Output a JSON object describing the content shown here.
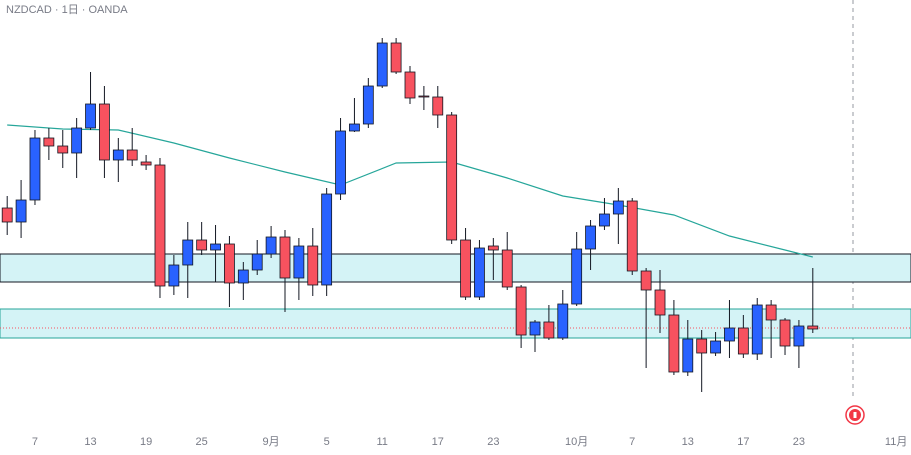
{
  "chart_data": {
    "type": "candlestick",
    "title": "NZDCAD · 1日 · OANDA",
    "up_color": "#2962ff",
    "down_color": "#f7525f",
    "ma_color": "#26a69a",
    "zone_color": "#d4f3f6",
    "price_line_color": "#f7525f",
    "xlim": [
      -0.518,
      65.07
    ],
    "ylim": [
      0.8045,
      0.85
    ],
    "xticks": [
      {
        "value": 2,
        "label": "7"
      },
      {
        "value": 6,
        "label": "13"
      },
      {
        "value": 10,
        "label": "19"
      },
      {
        "value": 14,
        "label": "25"
      },
      {
        "value": 19,
        "label": "9月"
      },
      {
        "value": 23,
        "label": "5"
      },
      {
        "value": 27,
        "label": "11"
      },
      {
        "value": 31,
        "label": "17"
      },
      {
        "value": 35,
        "label": "23"
      },
      {
        "value": 41,
        "label": "10月"
      },
      {
        "value": 45,
        "label": "7"
      },
      {
        "value": 49,
        "label": "13"
      },
      {
        "value": 53,
        "label": "17"
      },
      {
        "value": 57,
        "label": "23"
      },
      {
        "value": 64,
        "label": "11月"
      }
    ],
    "open": [
      0.8292,
      0.8278,
      0.83,
      0.8362,
      0.8354,
      0.8347,
      0.8372,
      0.8396,
      0.834,
      0.835,
      0.8338,
      0.8335,
      0.8214,
      0.8235,
      0.826,
      0.825,
      0.8256,
      0.8217,
      0.823,
      0.8246,
      0.8263,
      0.8222,
      0.8254,
      0.8215,
      0.8306,
      0.8369,
      0.8376,
      0.8414,
      0.8457,
      0.8428,
      0.8404,
      0.8403,
      0.8385,
      0.826,
      0.8203,
      0.8254,
      0.825,
      0.8213,
      0.8165,
      0.8178,
      0.8162,
      0.8196,
      0.8251,
      0.8274,
      0.8286,
      0.8299,
      0.8229,
      0.821,
      0.8185,
      0.8128,
      0.8161,
      0.8147,
      0.8159,
      0.8172,
      0.8146,
      0.8195,
      0.818,
      0.8154,
      0.8174
    ],
    "high": [
      0.8304,
      0.832,
      0.837,
      0.8372,
      0.837,
      0.8382,
      0.8428,
      0.8414,
      0.8362,
      0.8372,
      0.8345,
      0.8342,
      0.8245,
      0.8278,
      0.8278,
      0.8275,
      0.8264,
      0.8238,
      0.826,
      0.8274,
      0.827,
      0.8262,
      0.8272,
      0.8312,
      0.8382,
      0.8402,
      0.8422,
      0.8462,
      0.8462,
      0.8434,
      0.8414,
      0.8414,
      0.8388,
      0.8272,
      0.826,
      0.8262,
      0.8268,
      0.8215,
      0.818,
      0.8195,
      0.821,
      0.8268,
      0.828,
      0.8302,
      0.8312,
      0.8302,
      0.8232,
      0.823,
      0.82,
      0.818,
      0.817,
      0.8168,
      0.82,
      0.8185,
      0.8202,
      0.82,
      0.8182,
      0.818,
      0.8232
    ],
    "low": [
      0.8265,
      0.8262,
      0.8295,
      0.834,
      0.8332,
      0.8322,
      0.837,
      0.8322,
      0.8318,
      0.8334,
      0.833,
      0.8202,
      0.8205,
      0.8202,
      0.8245,
      0.8218,
      0.8193,
      0.82,
      0.8225,
      0.8242,
      0.8188,
      0.82,
      0.8204,
      0.8204,
      0.83,
      0.8368,
      0.8372,
      0.8412,
      0.8426,
      0.8396,
      0.839,
      0.8372,
      0.8256,
      0.82,
      0.82,
      0.822,
      0.821,
      0.8152,
      0.8148,
      0.816,
      0.816,
      0.8194,
      0.823,
      0.827,
      0.8256,
      0.8225,
      0.8132,
      0.8167,
      0.8125,
      0.8124,
      0.8108,
      0.8144,
      0.8142,
      0.8142,
      0.814,
      0.8142,
      0.8145,
      0.8132,
      0.8167
    ],
    "close": [
      0.8278,
      0.83,
      0.8362,
      0.8354,
      0.8347,
      0.8372,
      0.8396,
      0.834,
      0.835,
      0.834,
      0.8335,
      0.8214,
      0.8235,
      0.826,
      0.825,
      0.8256,
      0.8217,
      0.823,
      0.8246,
      0.8263,
      0.8222,
      0.8254,
      0.8215,
      0.8306,
      0.8369,
      0.8376,
      0.8414,
      0.8457,
      0.8428,
      0.8402,
      0.8403,
      0.8385,
      0.826,
      0.8203,
      0.8252,
      0.825,
      0.8213,
      0.8165,
      0.8178,
      0.8162,
      0.8196,
      0.8251,
      0.8274,
      0.8286,
      0.8299,
      0.8229,
      0.821,
      0.8185,
      0.8128,
      0.8161,
      0.8147,
      0.8159,
      0.8172,
      0.8146,
      0.8195,
      0.818,
      0.8154,
      0.8174,
      0.8171
    ],
    "ma": {
      "x": [
        0,
        4,
        8,
        12,
        16,
        20,
        24,
        28,
        32,
        36,
        40,
        44,
        48,
        52,
        56,
        58
      ],
      "values": [
        0.8375,
        0.8371,
        0.837,
        0.8357,
        0.8342,
        0.8328,
        0.8315,
        0.8337,
        0.8338,
        0.8322,
        0.8304,
        0.8295,
        0.8285,
        0.8264,
        0.825,
        0.8243
      ]
    },
    "zones": [
      [
        0.8246,
        0.8218
      ],
      [
        0.8191,
        0.8162
      ]
    ],
    "price_line": 0.8172
  }
}
